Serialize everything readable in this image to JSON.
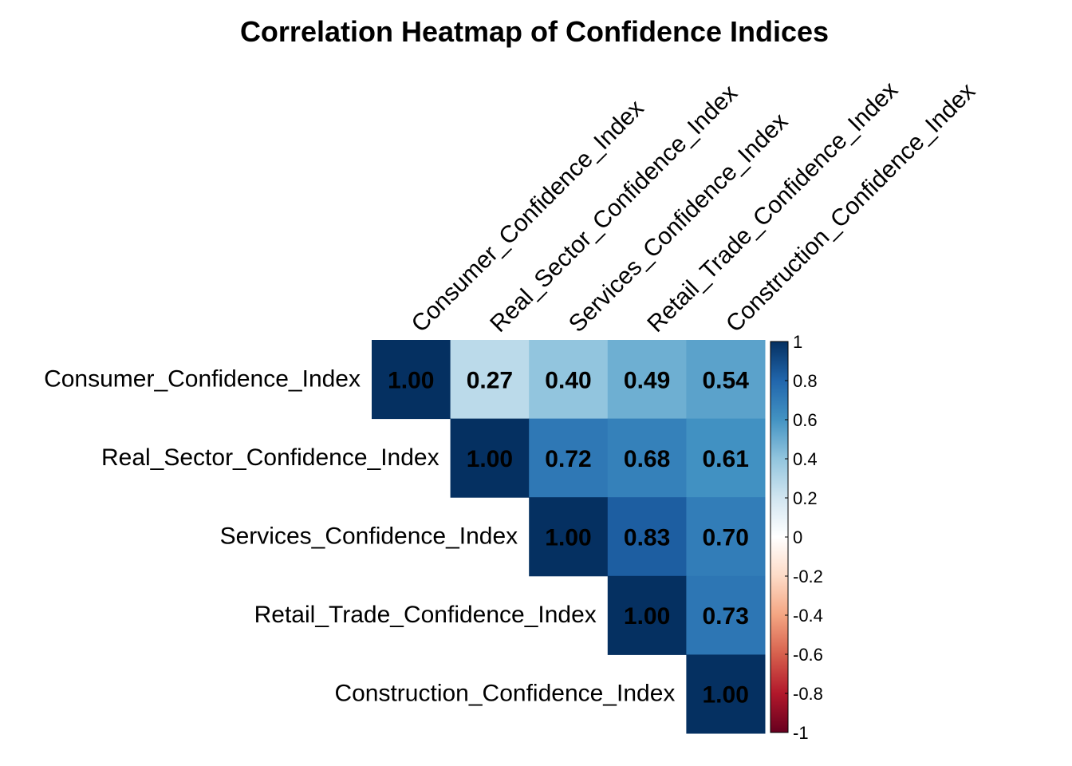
{
  "chart_data": {
    "type": "heatmap",
    "title": "Correlation Heatmap of Confidence Indices",
    "variables": [
      "Consumer_Confidence_Index",
      "Real_Sector_Confidence_Index",
      "Services_Confidence_Index",
      "Retail_Trade_Confidence_Index",
      "Construction_Confidence_Index"
    ],
    "matrix_shape": "upper-triangular",
    "values": [
      [
        1.0,
        0.27,
        0.4,
        0.49,
        0.54
      ],
      [
        null,
        1.0,
        0.72,
        0.68,
        0.61
      ],
      [
        null,
        null,
        1.0,
        0.83,
        0.7
      ],
      [
        null,
        null,
        null,
        1.0,
        0.73
      ],
      [
        null,
        null,
        null,
        null,
        1.0
      ]
    ],
    "color_scale": {
      "min": -1,
      "max": 1,
      "ticks": [
        "1",
        "0.8",
        "0.6",
        "0.4",
        "0.2",
        "0",
        "-0.2",
        "-0.4",
        "-0.6",
        "-0.8",
        "-1"
      ],
      "palette": [
        "#67001F",
        "#B2182B",
        "#D6604D",
        "#F4A582",
        "#FDDBC7",
        "#FFFFFF",
        "#D1E5F0",
        "#92C5DE",
        "#4393C3",
        "#2166AC",
        "#053061"
      ]
    },
    "legend_position": "right"
  }
}
